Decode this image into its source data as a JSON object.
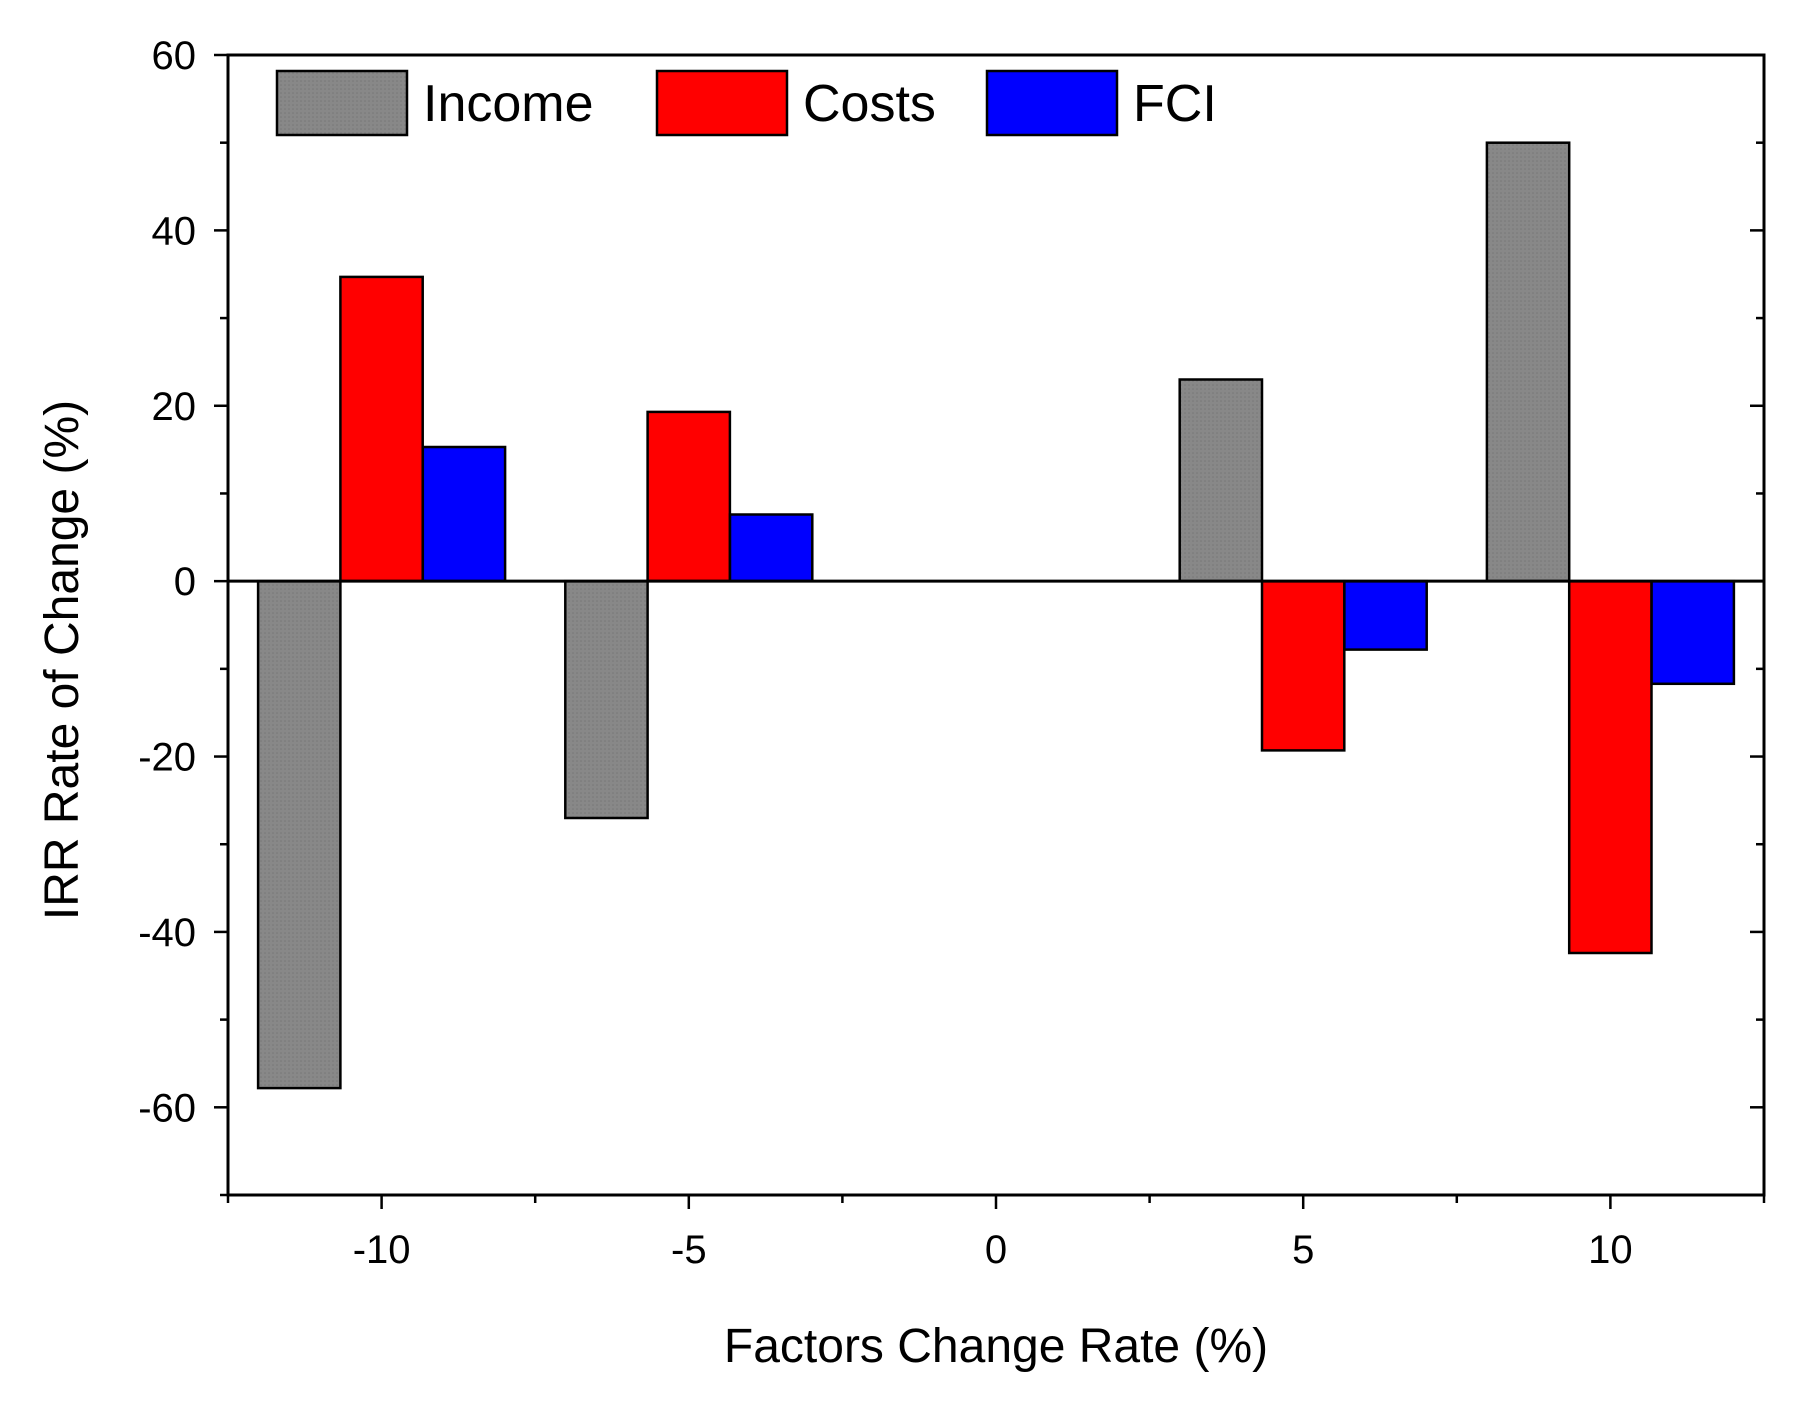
{
  "chart_data": {
    "type": "bar",
    "title": "",
    "xlabel": "Factors Change Rate (%)",
    "ylabel": "IRR Rate of Change (%)",
    "categories": [
      "-10",
      "-5",
      "0",
      "5",
      "10"
    ],
    "x_values": [
      -10,
      -5,
      0,
      5,
      10
    ],
    "xlim": [
      -12.5,
      12.5
    ],
    "ylim": [
      -70,
      60
    ],
    "y_ticks": [
      -60,
      -40,
      -20,
      0,
      20,
      40,
      60
    ],
    "y_tick_labels": [
      "-60",
      "-40",
      "-20",
      "0",
      "20",
      "40",
      "60"
    ],
    "x_ticks": [
      -10,
      -5,
      0,
      5,
      10
    ],
    "x_tick_labels": [
      "-10",
      "-5",
      "0",
      "5",
      "10"
    ],
    "grid": false,
    "legend_position": "top-left",
    "series": [
      {
        "name": "Income",
        "color": "#808080",
        "values": [
          -57.8,
          -27.0,
          0,
          23.0,
          50.0
        ]
      },
      {
        "name": "Costs",
        "color": "#ff0000",
        "values": [
          34.7,
          19.3,
          0,
          -19.3,
          -42.4
        ]
      },
      {
        "name": "FCI",
        "color": "#0000ff",
        "values": [
          15.3,
          7.6,
          0,
          -7.8,
          -11.7
        ]
      }
    ]
  }
}
